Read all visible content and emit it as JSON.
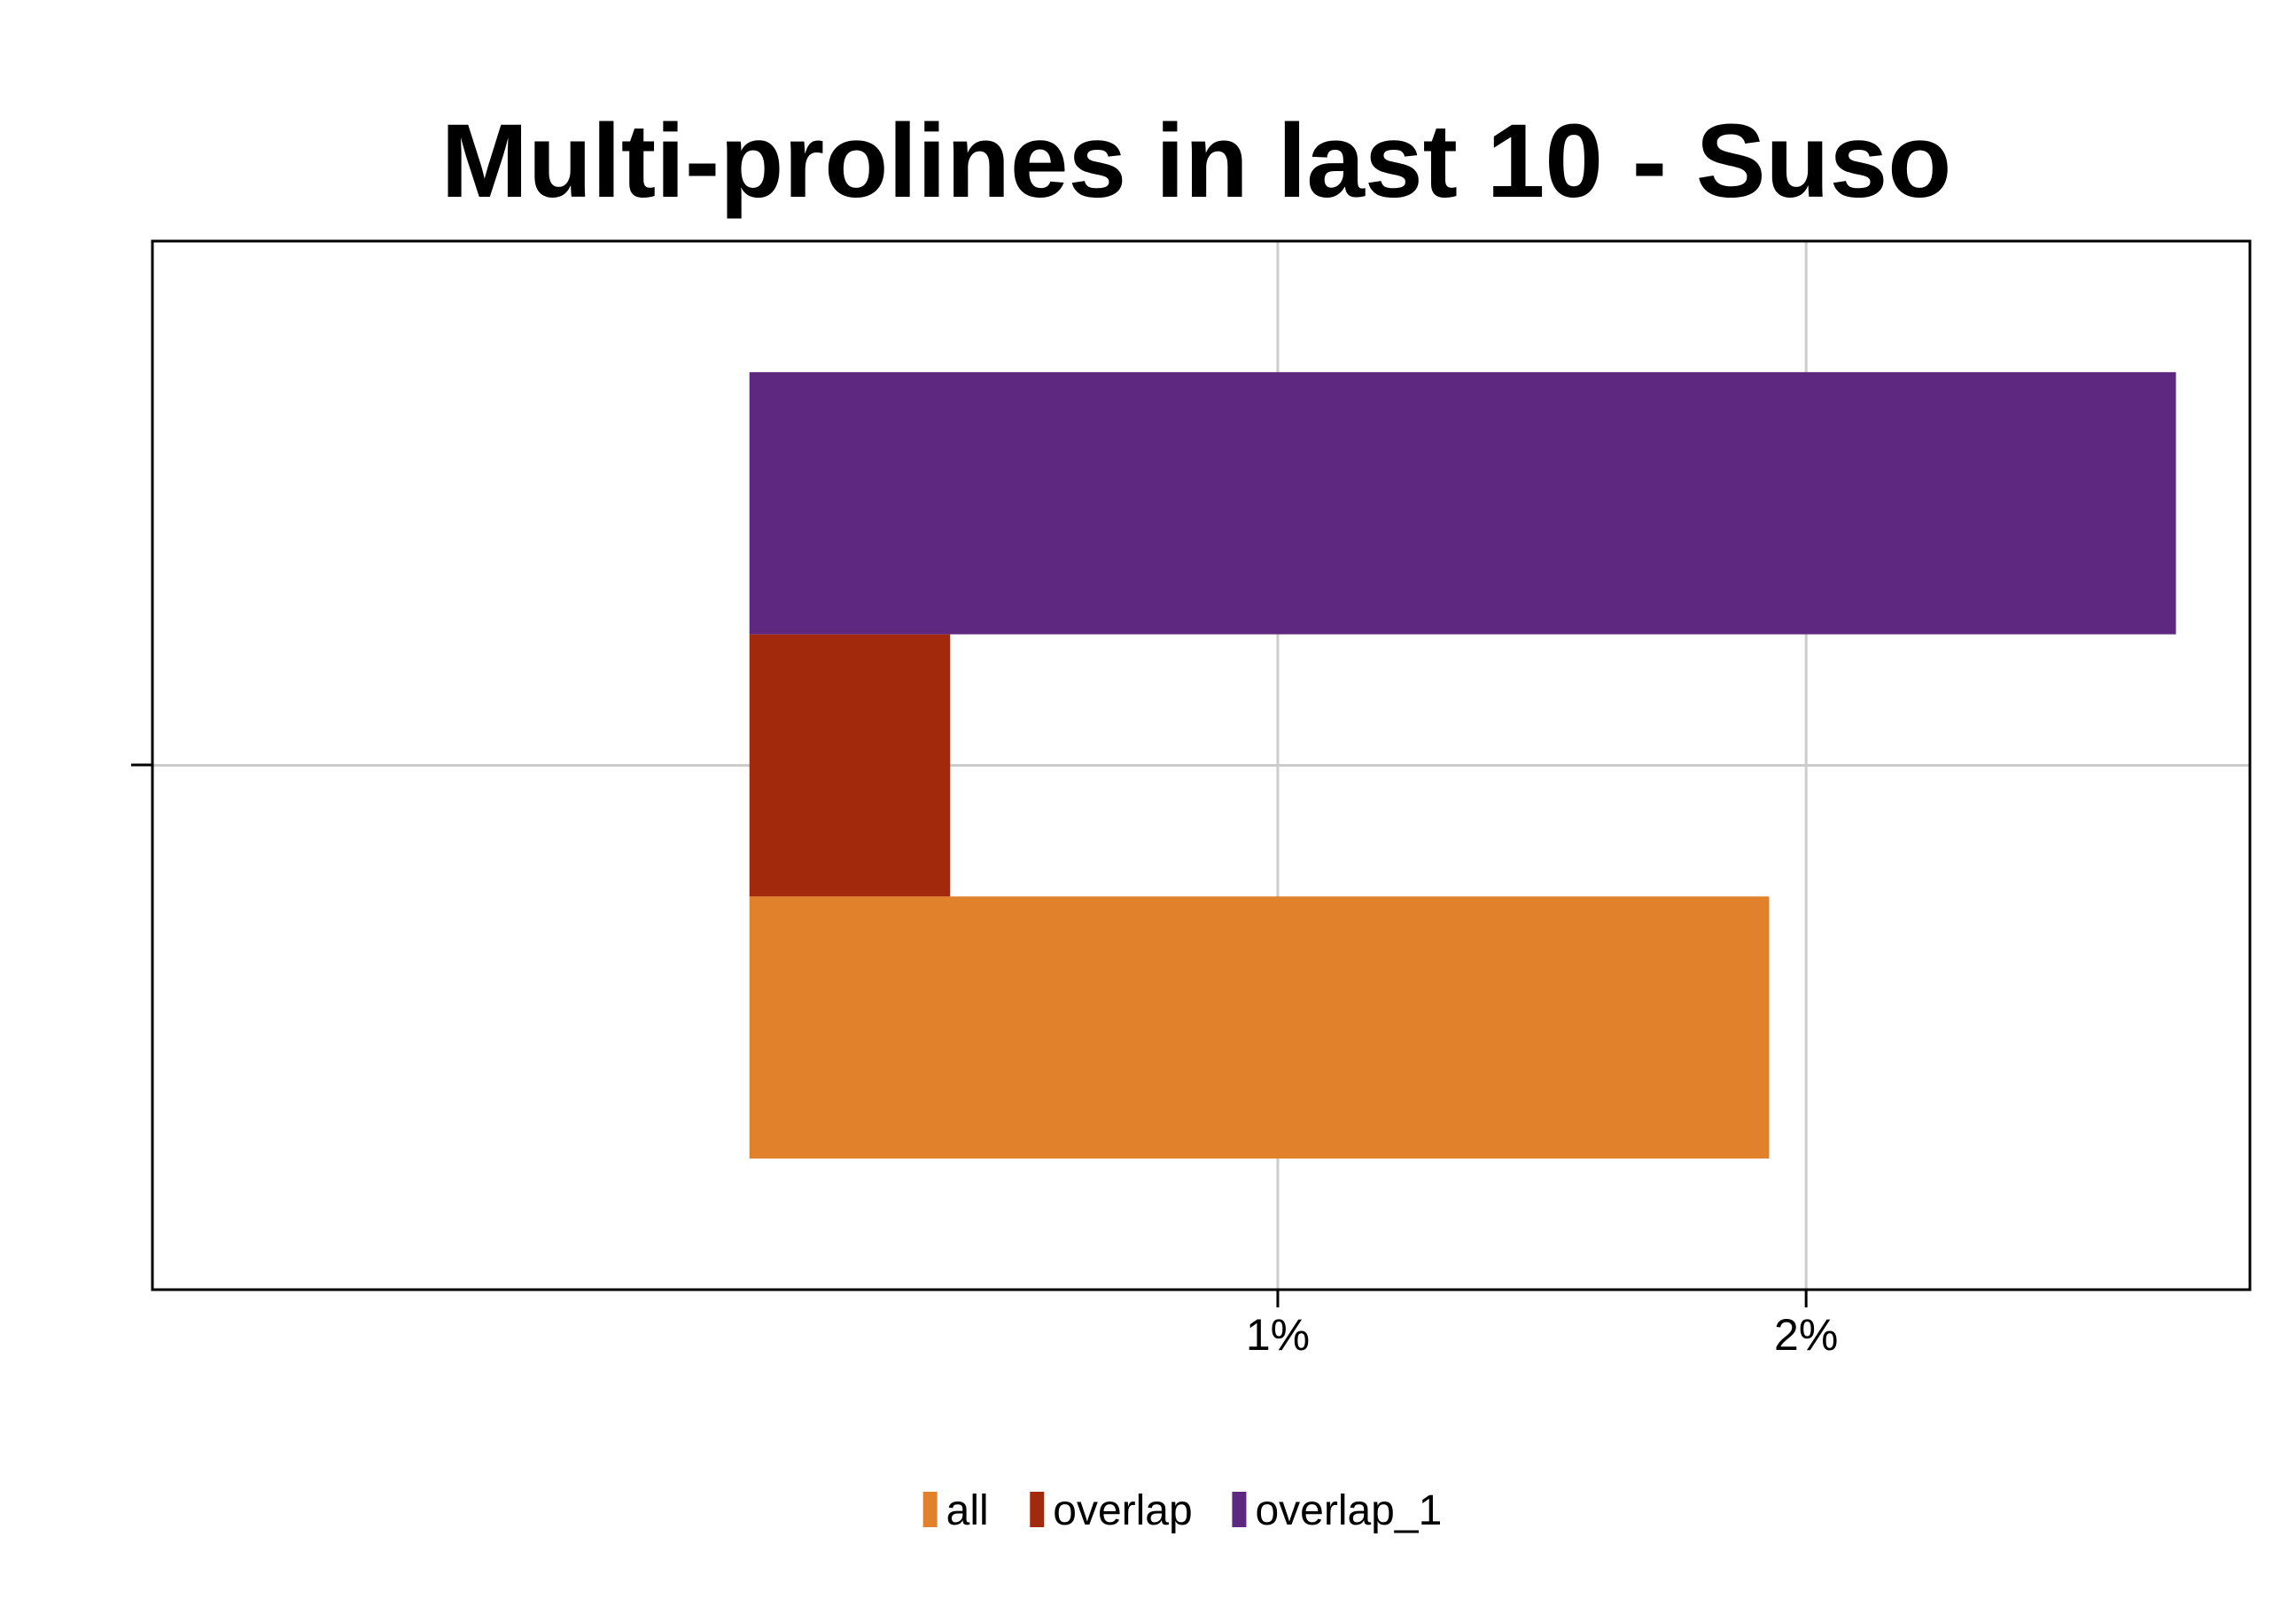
{
  "chart_data": {
    "type": "bar",
    "orientation": "horizontal",
    "title": "Multi-prolines in last 10 - Suso",
    "xlabel": "",
    "ylabel": "",
    "xlim": [
      -0.0113,
      0.0284
    ],
    "x_ticks": [
      {
        "value": 0.01,
        "label": "1%"
      },
      {
        "value": 0.02,
        "label": "2%"
      }
    ],
    "grid": true,
    "legend_position": "bottom",
    "series": [
      {
        "name": "all",
        "value": 0.0193,
        "color": "#E1812C"
      },
      {
        "name": "overlap",
        "value": 0.0038,
        "color": "#A2290B"
      },
      {
        "name": "overlap_1",
        "value": 0.027,
        "color": "#5F2880"
      }
    ]
  }
}
